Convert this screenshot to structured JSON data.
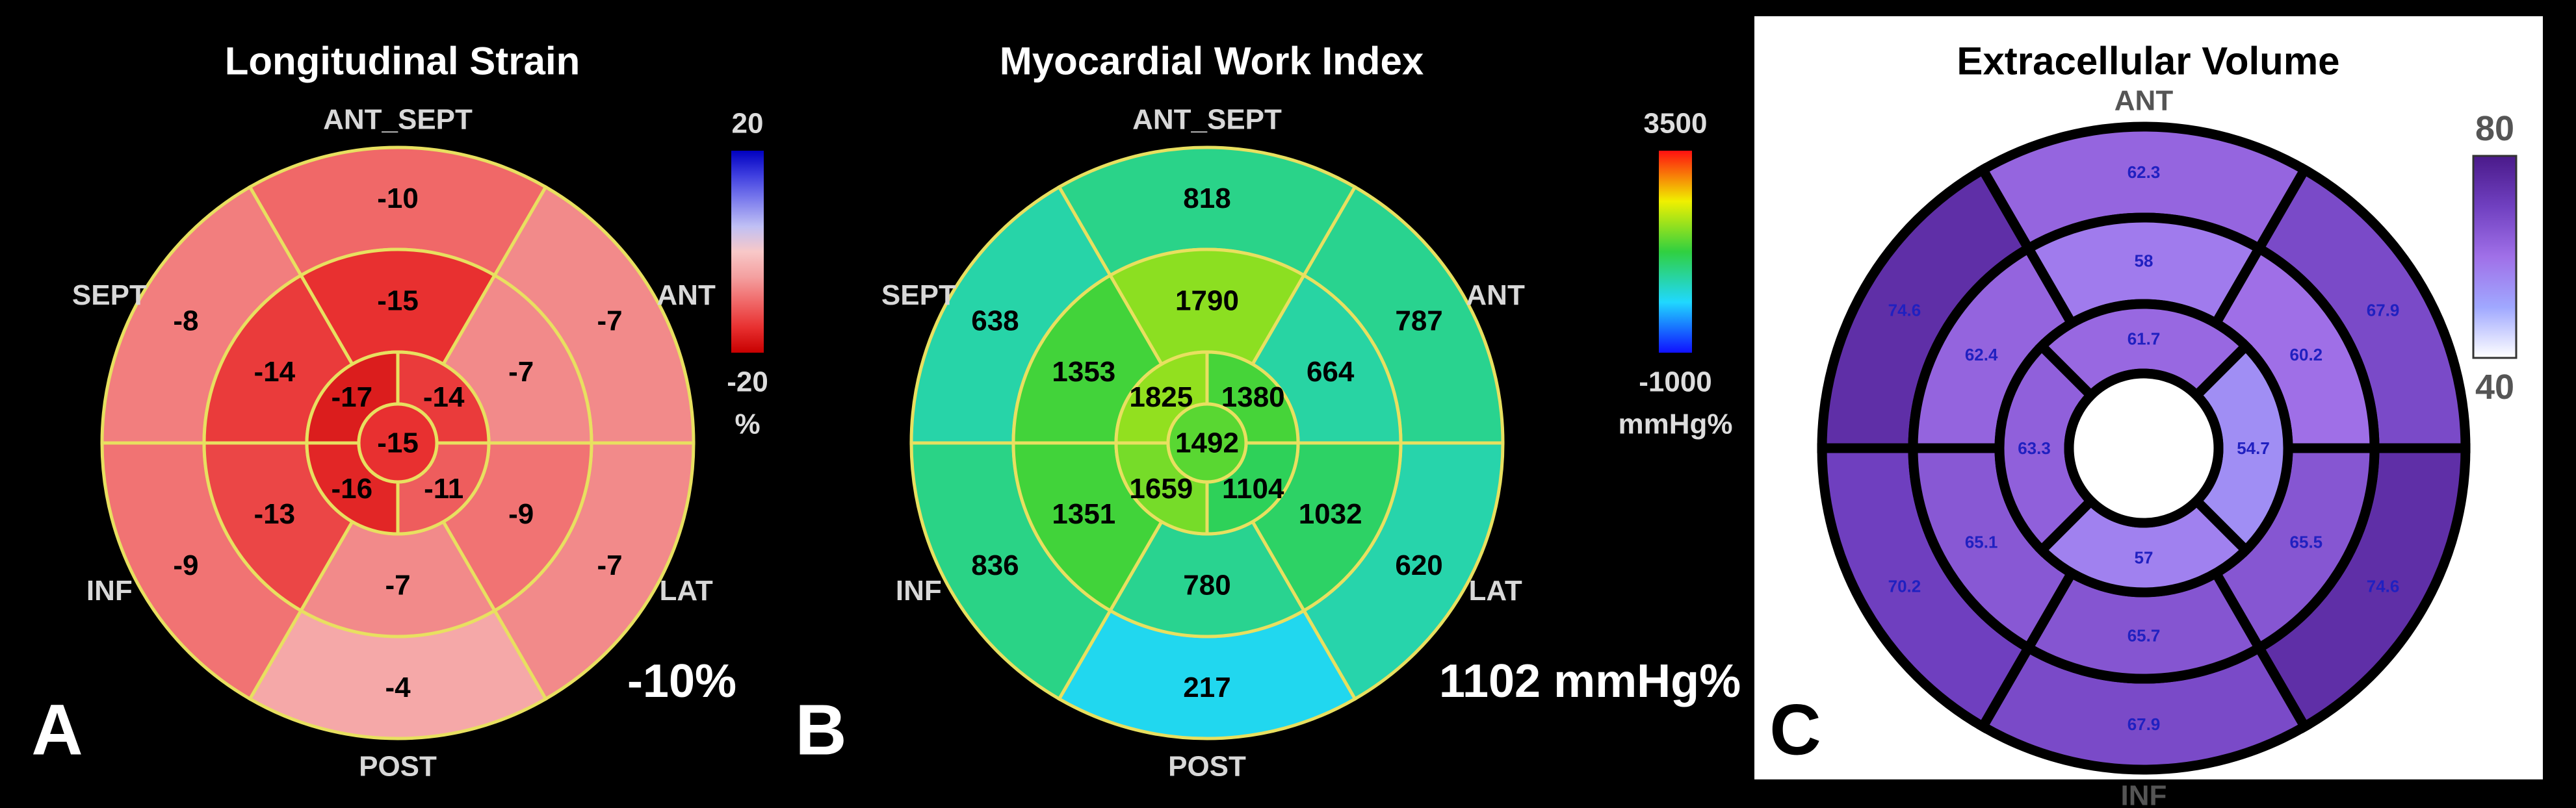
{
  "chart_data": [
    {
      "type": "bullseye",
      "panel": "A",
      "title": "Longitudinal Strain",
      "wall_labels": [
        "ANT_SEPT",
        "ANT",
        "LAT",
        "POST",
        "INF",
        "SEPT"
      ],
      "rings": {
        "basal": [
          -10,
          -7,
          -7,
          -4,
          -9,
          -8
        ],
        "mid": [
          -15,
          -7,
          -9,
          -7,
          -13,
          -14
        ],
        "apical": [
          -14,
          -11,
          -16,
          -17
        ],
        "apex": -15
      },
      "colorbar": {
        "min": -20,
        "max": 20,
        "unit": "%",
        "colors": [
          "#c80000",
          "#e83030",
          "#f06868",
          "#f4a0a0",
          "#f8c8c8",
          "#c0c0f4",
          "#8080ee",
          "#4040e0",
          "#0000c0"
        ]
      },
      "summary": "-10%"
    },
    {
      "type": "bullseye",
      "panel": "B",
      "title": "Myocardial Work Index",
      "wall_labels": [
        "ANT_SEPT",
        "ANT",
        "LAT",
        "POST",
        "INF",
        "SEPT"
      ],
      "rings": {
        "basal": [
          818,
          787,
          620,
          217,
          836,
          638
        ],
        "mid": [
          1790,
          664,
          1032,
          780,
          1351,
          1353
        ],
        "apical": [
          1380,
          1104,
          1659,
          1825
        ],
        "apex": 1492
      },
      "colorbar": {
        "min": -1000,
        "max": 3500,
        "unit": "mmHg%",
        "colors": [
          "#1010ff",
          "#20d8ff",
          "#30d040",
          "#f0f000",
          "#ff1010"
        ]
      },
      "summary": "1102 mmHg%"
    },
    {
      "type": "bullseye",
      "panel": "C",
      "title": "Extracellular Volume",
      "wall_labels": [
        "ANT",
        "INF"
      ],
      "rings": {
        "basal": [
          62.3,
          67.9,
          74.6,
          67.9,
          70.2,
          74.6
        ],
        "mid": [
          58,
          60.2,
          65.5,
          65.7,
          65.1,
          62.4
        ],
        "apical": [
          61.7,
          54.7,
          57,
          63.3
        ]
      },
      "colorbar": {
        "min": 40,
        "max": 80,
        "colors": [
          "#ffffff",
          "#a0a8ff",
          "#a070e8",
          "#7040c0",
          "#4a1a8a"
        ]
      }
    }
  ]
}
